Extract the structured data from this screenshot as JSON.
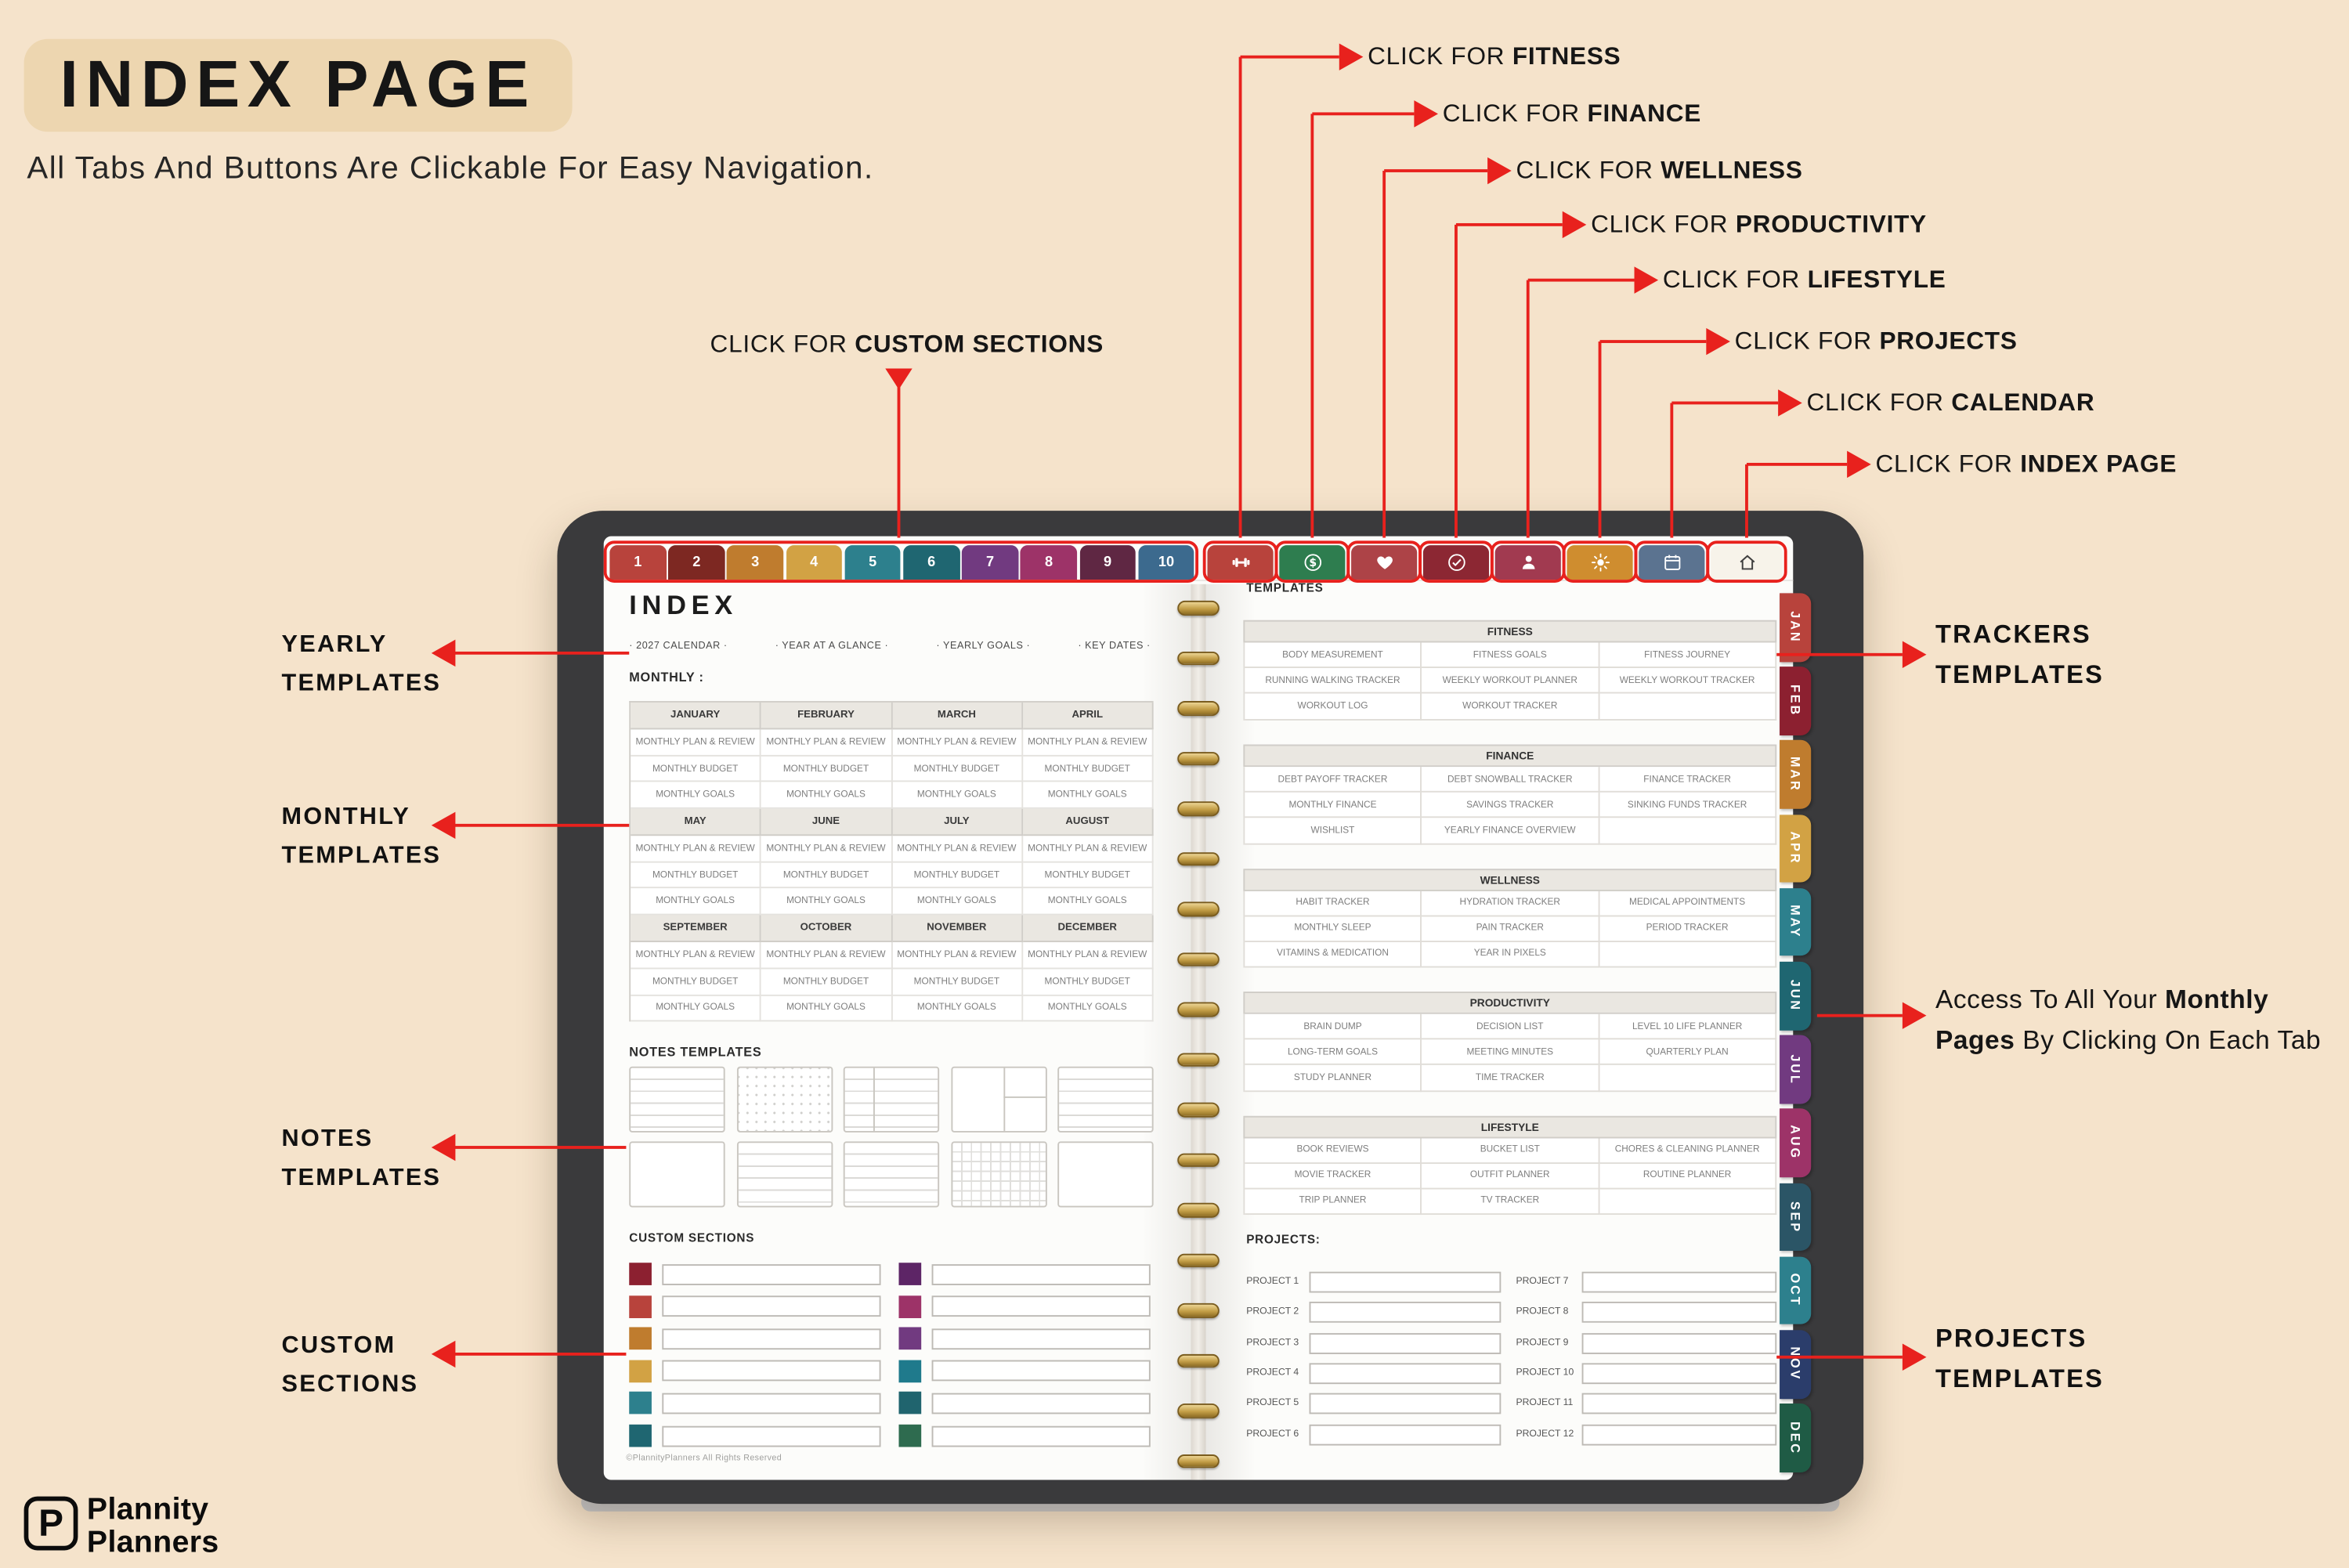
{
  "header": {
    "title": "INDEX PAGE",
    "subtitle": "All Tabs And Buttons Are Clickable For Easy Navigation."
  },
  "annotations": {
    "top": [
      {
        "prefix": "CLICK FOR ",
        "target": "FITNESS"
      },
      {
        "prefix": "CLICK FOR ",
        "target": "FINANCE"
      },
      {
        "prefix": "CLICK FOR ",
        "target": "WELLNESS"
      },
      {
        "prefix": "CLICK FOR ",
        "target": "PRODUCTIVITY"
      },
      {
        "prefix": "CLICK FOR ",
        "target": "LIFESTYLE"
      },
      {
        "prefix": "CLICK FOR ",
        "target": "PROJECTS"
      },
      {
        "prefix": "CLICK FOR ",
        "target": "CALENDAR"
      },
      {
        "prefix": "CLICK FOR ",
        "target": "INDEX PAGE"
      }
    ],
    "custom": {
      "prefix": "CLICK FOR ",
      "target": "CUSTOM SECTIONS"
    },
    "left": [
      [
        "YEARLY",
        "TEMPLATES"
      ],
      [
        "MONTHLY",
        "TEMPLATES"
      ],
      [
        "NOTES",
        "TEMPLATES"
      ],
      [
        "CUSTOM",
        "SECTIONS"
      ]
    ],
    "right": [
      [
        "TRACKERS",
        "TEMPLATES"
      ],
      [
        "PROJECTS",
        "TEMPLATES"
      ]
    ],
    "monthly_pages": {
      "line1": [
        {
          "t": "Access To All Your ",
          "b": 0
        },
        {
          "t": "Monthly",
          "b": 1
        }
      ],
      "line2": [
        {
          "t": "Pages",
          "b": 1
        },
        {
          "t": " By Clicking On Each Tab",
          "b": 0
        }
      ]
    }
  },
  "tabs": {
    "numbers": [
      {
        "label": "1",
        "color": "#b8433c"
      },
      {
        "label": "2",
        "color": "#7d2822"
      },
      {
        "label": "3",
        "color": "#bf7c2e"
      },
      {
        "label": "4",
        "color": "#d2a244"
      },
      {
        "label": "5",
        "color": "#2d808d"
      },
      {
        "label": "6",
        "color": "#1f6671"
      },
      {
        "label": "7",
        "color": "#713a80"
      },
      {
        "label": "8",
        "color": "#9d3368"
      },
      {
        "label": "9",
        "color": "#5f2743"
      },
      {
        "label": "10",
        "color": "#3c6a8e"
      }
    ],
    "icons": [
      {
        "name": "fitness",
        "glyph": "dumbbell",
        "color": "#b8433c"
      },
      {
        "name": "finance",
        "glyph": "dollar",
        "color": "#2e7d4f"
      },
      {
        "name": "wellness",
        "glyph": "heart",
        "color": "#ad4347"
      },
      {
        "name": "productivity",
        "glyph": "check",
        "color": "#8c2733"
      },
      {
        "name": "lifestyle",
        "glyph": "person",
        "color": "#a13a50"
      },
      {
        "name": "custom-sections",
        "glyph": "sun",
        "color": "#cf8d2f"
      },
      {
        "name": "calendar",
        "glyph": "calendar",
        "color": "#5b7390"
      },
      {
        "name": "index-home",
        "glyph": "home",
        "color": "#f7f3ea",
        "fg": "#3f3f3f"
      }
    ],
    "months": [
      {
        "label": "JAN",
        "color": "#b8433c"
      },
      {
        "label": "FEB",
        "color": "#8c2030"
      },
      {
        "label": "MAR",
        "color": "#bf7c2e"
      },
      {
        "label": "APR",
        "color": "#d2a244"
      },
      {
        "label": "MAY",
        "color": "#2d808d"
      },
      {
        "label": "JUN",
        "color": "#1f6671"
      },
      {
        "label": "JUL",
        "color": "#713a80"
      },
      {
        "label": "AUG",
        "color": "#9d3368"
      },
      {
        "label": "SEP",
        "color": "#2b5566"
      },
      {
        "label": "OCT",
        "color": "#2d808d"
      },
      {
        "label": "NOV",
        "color": "#2b3d6b"
      },
      {
        "label": "DEC",
        "color": "#1f5b45"
      }
    ]
  },
  "planner": {
    "index_title": "INDEX",
    "yearly_links": [
      "· 2027 CALENDAR ·",
      "· YEAR AT A GLANCE ·",
      "· YEARLY GOALS ·",
      "· KEY DATES ·"
    ],
    "monthly_label": "MONTHLY :",
    "monthly_groups": [
      [
        "JANUARY",
        "FEBRUARY",
        "MARCH",
        "APRIL"
      ],
      [
        "MAY",
        "JUNE",
        "JULY",
        "AUGUST"
      ],
      [
        "SEPTEMBER",
        "OCTOBER",
        "NOVEMBER",
        "DECEMBER"
      ]
    ],
    "monthly_row_items": [
      "MONTHLY PLAN & REVIEW",
      "MONTHLY BUDGET",
      "MONTHLY GOALS"
    ],
    "notes_label": "NOTES TEMPLATES",
    "notes_patterns": [
      "lines",
      "dots",
      "cornell",
      "panes",
      "lines",
      "blank",
      "lines",
      "lines",
      "grid",
      "blank"
    ],
    "custom_label": "CUSTOM SECTIONS",
    "custom_colors": {
      "left": [
        "#8c2030",
        "#b8433c",
        "#bf7c2e",
        "#d2a244",
        "#2d808d",
        "#1f6671"
      ],
      "right": [
        "#5d2566",
        "#9d3368",
        "#713a80",
        "#1f7a8c",
        "#20646e",
        "#2e6b4f"
      ]
    },
    "copyright": "©PlannityPlanners All Rights Reserved",
    "templates_label": "TEMPLATES",
    "categories": [
      {
        "name": "FITNESS",
        "rows": [
          [
            "BODY MEASUREMENT",
            "FITNESS GOALS",
            "FITNESS JOURNEY"
          ],
          [
            "RUNNING WALKING TRACKER",
            "WEEKLY WORKOUT PLANNER",
            "WEEKLY WORKOUT TRACKER"
          ],
          [
            "WORKOUT LOG",
            "WORKOUT TRACKER",
            ""
          ]
        ]
      },
      {
        "name": "FINANCE",
        "rows": [
          [
            "DEBT PAYOFF TRACKER",
            "DEBT SNOWBALL TRACKER",
            "FINANCE TRACKER"
          ],
          [
            "MONTHLY FINANCE",
            "SAVINGS TRACKER",
            "SINKING FUNDS TRACKER"
          ],
          [
            "WISHLIST",
            "YEARLY FINANCE OVERVIEW",
            ""
          ]
        ]
      },
      {
        "name": "WELLNESS",
        "rows": [
          [
            "HABIT TRACKER",
            "HYDRATION TRACKER",
            "MEDICAL APPOINTMENTS"
          ],
          [
            "MONTHLY SLEEP",
            "PAIN TRACKER",
            "PERIOD TRACKER"
          ],
          [
            "VITAMINS & MEDICATION",
            "YEAR IN PIXELS",
            ""
          ]
        ]
      },
      {
        "name": "PRODUCTIVITY",
        "rows": [
          [
            "BRAIN DUMP",
            "DECISION LIST",
            "LEVEL 10 LIFE PLANNER"
          ],
          [
            "LONG-TERM GOALS",
            "MEETING MINUTES",
            "QUARTERLY PLAN"
          ],
          [
            "STUDY PLANNER",
            "TIME TRACKER",
            ""
          ]
        ]
      },
      {
        "name": "LIFESTYLE",
        "rows": [
          [
            "BOOK REVIEWS",
            "BUCKET LIST",
            "CHORES & CLEANING PLANNER"
          ],
          [
            "MOVIE TRACKER",
            "OUTFIT PLANNER",
            "ROUTINE PLANNER"
          ],
          [
            "TRIP PLANNER",
            "TV TRACKER",
            ""
          ]
        ]
      }
    ],
    "projects_label": "PROJECTS:",
    "projects": [
      "PROJECT 1",
      "PROJECT 2",
      "PROJECT 3",
      "PROJECT 4",
      "PROJECT 5",
      "PROJECT 6",
      "PROJECT 7",
      "PROJECT 8",
      "PROJECT 9",
      "PROJECT 10",
      "PROJECT 11",
      "PROJECT 12"
    ]
  },
  "logo": {
    "mark": "P",
    "line1": "Plannity",
    "line2": "Planners"
  },
  "colors": {
    "annotation_red": "#e8211d",
    "background": "#f5e3cb",
    "badge": "#edd6b0"
  }
}
